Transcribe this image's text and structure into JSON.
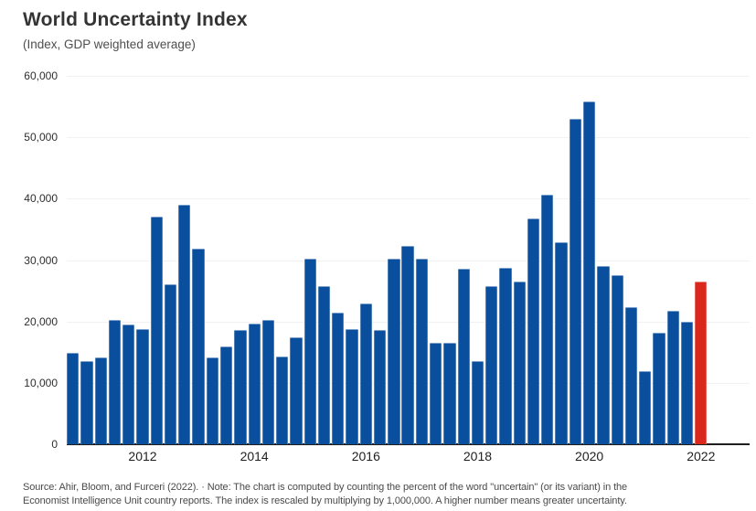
{
  "header": {
    "title": "World Uncertainty Index",
    "subtitle": "(Index, GDP weighted average)"
  },
  "chart_data": {
    "type": "bar",
    "title": "World Uncertainty Index",
    "subtitle": "(Index, GDP weighted average)",
    "x": [
      "2010Q4",
      "2011Q1",
      "2011Q2",
      "2011Q3",
      "2011Q4",
      "2012Q1",
      "2012Q2",
      "2012Q3",
      "2012Q4",
      "2013Q1",
      "2013Q2",
      "2013Q3",
      "2013Q4",
      "2014Q1",
      "2014Q2",
      "2014Q3",
      "2014Q4",
      "2015Q1",
      "2015Q2",
      "2015Q3",
      "2015Q4",
      "2016Q1",
      "2016Q2",
      "2016Q3",
      "2016Q4",
      "2017Q1",
      "2017Q2",
      "2017Q3",
      "2017Q4",
      "2018Q1",
      "2018Q2",
      "2018Q3",
      "2018Q4",
      "2019Q1",
      "2019Q2",
      "2019Q3",
      "2019Q4",
      "2020Q1",
      "2020Q2",
      "2020Q3",
      "2020Q4",
      "2021Q1",
      "2021Q2",
      "2021Q3",
      "2021Q4",
      "2022Q1"
    ],
    "values": [
      14900,
      13500,
      14200,
      20300,
      19500,
      18700,
      37000,
      26000,
      39000,
      31800,
      14200,
      15900,
      18600,
      19700,
      20200,
      14300,
      17400,
      30200,
      25700,
      21500,
      18700,
      23000,
      18600,
      30300,
      32300,
      30200,
      16600,
      16500,
      28600,
      13600,
      25700,
      28700,
      26500,
      36800,
      40600,
      32900,
      53000,
      55900,
      29000,
      27600,
      22400,
      11900,
      18200,
      21700,
      20000,
      26500
    ],
    "ylim": [
      0,
      60000
    ],
    "yticks": [
      {
        "value": 0,
        "label": "0"
      },
      {
        "value": 10000,
        "label": "10,000"
      },
      {
        "value": 20000,
        "label": "20,000"
      },
      {
        "value": 30000,
        "label": "30,000"
      },
      {
        "value": 40000,
        "label": "40,000"
      },
      {
        "value": 50000,
        "label": "50,000"
      },
      {
        "value": 60000,
        "label": "60,000"
      }
    ],
    "xticks": [
      {
        "label": "2012",
        "bar_index": 5
      },
      {
        "label": "2014",
        "bar_index": 13
      },
      {
        "label": "2016",
        "bar_index": 21
      },
      {
        "label": "2018",
        "bar_index": 29
      },
      {
        "label": "2020",
        "bar_index": 37
      },
      {
        "label": "2022",
        "bar_index": 45
      }
    ],
    "bar_color": "#0a4f9d",
    "highlight_color": "#da291c",
    "highlight_index": 45,
    "grid": "horizontal-light",
    "legend": "none"
  },
  "footer": {
    "line1": "Source: Ahir, Bloom, and Furceri (2022). · Note: The chart is computed by counting the percent of the word \"uncertain\" (or its variant) in the",
    "line2": "Economist Intelligence Unit country reports. The index is rescaled by multiplying by 1,000,000. A higher number means greater uncertainty."
  }
}
